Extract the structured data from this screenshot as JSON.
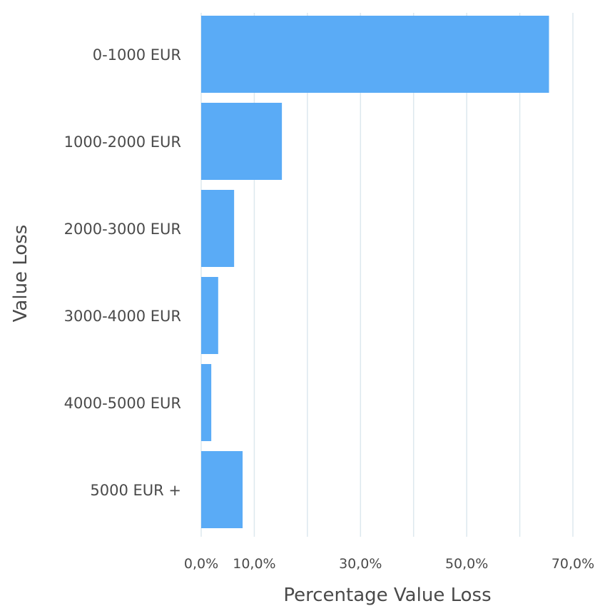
{
  "chart_data": {
    "type": "bar",
    "orientation": "horizontal",
    "categories": [
      "0-1000 EUR",
      "1000-2000 EUR",
      "2000-3000 EUR",
      "3000-4000 EUR",
      "4000-5000 EUR",
      "5000 EUR +"
    ],
    "series": [
      {
        "values": [
          65.5,
          15.2,
          6.2,
          3.2,
          1.9,
          7.8
        ],
        "color": "#5aabf6"
      }
    ],
    "xlabel": "Percentage Value Loss",
    "ylabel": "Value Loss",
    "xlim": [
      0,
      70
    ],
    "xticks": [
      0,
      10,
      30,
      50,
      70
    ],
    "xtick_labels": [
      "0,0%",
      "10,0%",
      "30,0%",
      "50,0%",
      "70,0%"
    ],
    "gridlines_at": [
      0,
      10,
      20,
      30,
      40,
      50,
      60,
      70
    ],
    "grid": true,
    "grid_color": "#dde8ee"
  }
}
